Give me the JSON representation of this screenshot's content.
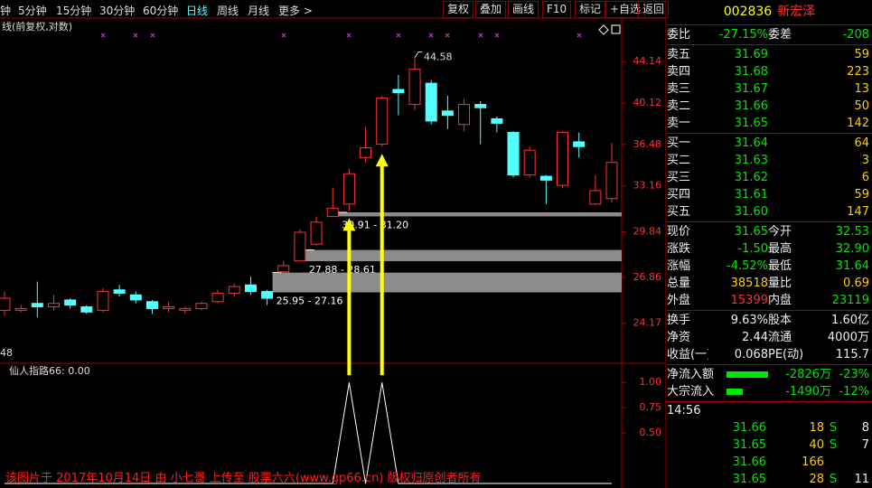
{
  "toolbar": {
    "periods": [
      "钟",
      "5分钟",
      "15分钟",
      "30分钟",
      "60分钟",
      "日线",
      "周线",
      "月线",
      "更多 >"
    ],
    "buttons": [
      "复权",
      "叠加",
      "画线",
      "F10",
      "标记",
      "+自选",
      "返回"
    ]
  },
  "chart_data": [
    {
      "type": "candlestick",
      "title": "线(前复权,对数)",
      "corner_label": "48",
      "open": [
        24.9,
        24.9,
        25.3,
        25.1,
        25.5,
        25.1,
        24.9,
        26.1,
        25.8,
        25.4,
        25.0,
        24.9,
        25.0,
        25.4,
        25.9,
        26.4,
        26.0,
        27.2,
        27.9,
        29.0,
        30.9,
        31.8,
        35.4,
        36.5,
        41.4,
        40.0,
        42.0,
        39.4,
        38.2,
        40.0,
        38.7,
        37.5,
        34.0,
        33.9,
        33.2,
        36.7,
        31.8,
        32.2
      ],
      "high": [
        26.0,
        25.2,
        26.6,
        25.8,
        25.6,
        25.2,
        26.2,
        26.4,
        26.0,
        25.5,
        25.4,
        25.1,
        25.4,
        26.1,
        26.5,
        26.9,
        26.1,
        27.9,
        30.0,
        30.9,
        33.0,
        34.5,
        38.0,
        40.8,
        42.8,
        44.58,
        42.3,
        40.8,
        40.5,
        40.3,
        38.9,
        37.6,
        36.3,
        34.0,
        37.6,
        37.5,
        34.0,
        36.6
      ],
      "low": [
        24.6,
        24.8,
        24.5,
        24.9,
        25.0,
        24.7,
        24.8,
        25.7,
        25.3,
        24.7,
        24.8,
        24.7,
        24.9,
        25.3,
        25.7,
        25.8,
        25.2,
        27.2,
        27.9,
        28.9,
        30.9,
        31.3,
        35.0,
        36.3,
        39.0,
        39.5,
        38.2,
        37.8,
        37.6,
        36.5,
        37.5,
        33.8,
        33.8,
        31.8,
        33.0,
        35.4,
        31.7,
        31.9
      ],
      "close": [
        25.6,
        25.0,
        25.1,
        25.3,
        25.2,
        24.8,
        26.0,
        25.9,
        25.5,
        25.0,
        25.1,
        25.0,
        25.3,
        25.9,
        26.3,
        26.0,
        25.6,
        27.6,
        29.8,
        30.5,
        31.5,
        34.1,
        36.2,
        40.6,
        41.1,
        43.4,
        38.5,
        39.0,
        40.0,
        39.7,
        38.3,
        34.0,
        36.0,
        33.6,
        37.5,
        36.3,
        32.8,
        35.0
      ],
      "up_color": "#ff3232",
      "down_color": "#54ffff",
      "log_scale": true,
      "ylim": [
        22.04,
        48.8
      ],
      "yticks": [
        44.14,
        40.12,
        36.48,
        33.16,
        29.84,
        26.86,
        24.17
      ],
      "max_label": 44.58,
      "gaps": [
        {
          "label": "30.91 - 31.20",
          "low": 30.91,
          "high": 31.2
        },
        {
          "label": "27.88 - 28.61",
          "low": 27.88,
          "high": 28.61
        },
        {
          "label": "25.95 - 27.16",
          "low": 25.95,
          "high": 27.16
        }
      ],
      "gap_color": "#8c8c8c"
    },
    {
      "type": "line",
      "title": "仙人指路66: 0.00",
      "color": "#ffffff",
      "arrow_color": "#ffff00",
      "values": [
        0,
        0,
        0,
        0,
        0,
        0,
        0,
        0,
        0,
        0,
        0,
        0,
        0,
        0,
        0,
        0,
        0,
        0,
        0,
        0,
        0,
        1,
        0,
        1,
        0,
        0,
        0,
        0,
        0,
        0,
        0,
        0,
        0,
        0,
        0,
        0,
        0,
        0
      ],
      "ylim": [
        0,
        1.19
      ],
      "yticks": [
        {
          "value": 1,
          "label": "1.00"
        },
        {
          "value": 0.75,
          "label": "0.75"
        },
        {
          "value": 0.5,
          "label": "0.50"
        }
      ]
    }
  ],
  "watermark": "该图片于 2017年10月14日 由 小七哥 上传至 股票六六(www.gp66.cn) 版权归原创者所有",
  "quote": {
    "code": "002836",
    "name": "新宏泽",
    "ratio": [
      "委比",
      "-27.15%",
      "委差",
      "-208"
    ],
    "asks": [
      [
        "卖五",
        "31.69",
        "59"
      ],
      [
        "卖四",
        "31.68",
        "223"
      ],
      [
        "卖三",
        "31.67",
        "13"
      ],
      [
        "卖二",
        "31.66",
        "50"
      ],
      [
        "卖一",
        "31.65",
        "142"
      ]
    ],
    "bids": [
      [
        "买一",
        "31.64",
        "64"
      ],
      [
        "买二",
        "31.63",
        "3"
      ],
      [
        "买三",
        "31.62",
        "6"
      ],
      [
        "买四",
        "31.61",
        "59"
      ],
      [
        "买五",
        "31.60",
        "147"
      ]
    ],
    "stats": [
      [
        "现价",
        "31.65",
        "今开",
        "32.53"
      ],
      [
        "涨跌",
        "-1.50",
        "最高",
        "32.90"
      ],
      [
        "涨幅",
        "-4.52%",
        "最低",
        "31.64"
      ],
      [
        "总量",
        "38518",
        "量比",
        "0.69"
      ],
      [
        "外盘",
        "15399",
        "内盘",
        "23119"
      ]
    ],
    "fundamentals": [
      [
        "换手",
        "9.63%",
        "股本",
        "1.60亿"
      ],
      [
        "净资",
        "2.44",
        "流通",
        "4000万"
      ],
      [
        "收益(一)",
        "0.068",
        "PE(动)",
        "115.7"
      ]
    ],
    "flows": [
      [
        "净流入额",
        "-2826万",
        "-23%"
      ],
      [
        "大宗流入",
        "-1490万",
        "-12%"
      ]
    ],
    "trades": {
      "time": "14:56",
      "rows": [
        [
          "31.66",
          "18",
          "S",
          "8"
        ],
        [
          "31.65",
          "40",
          "S",
          "7"
        ],
        [
          "31.66",
          "166"
        ],
        [
          "31.65",
          "28",
          "S",
          "11"
        ],
        [
          "31.65",
          "7",
          "B",
          "6"
        ]
      ]
    }
  }
}
